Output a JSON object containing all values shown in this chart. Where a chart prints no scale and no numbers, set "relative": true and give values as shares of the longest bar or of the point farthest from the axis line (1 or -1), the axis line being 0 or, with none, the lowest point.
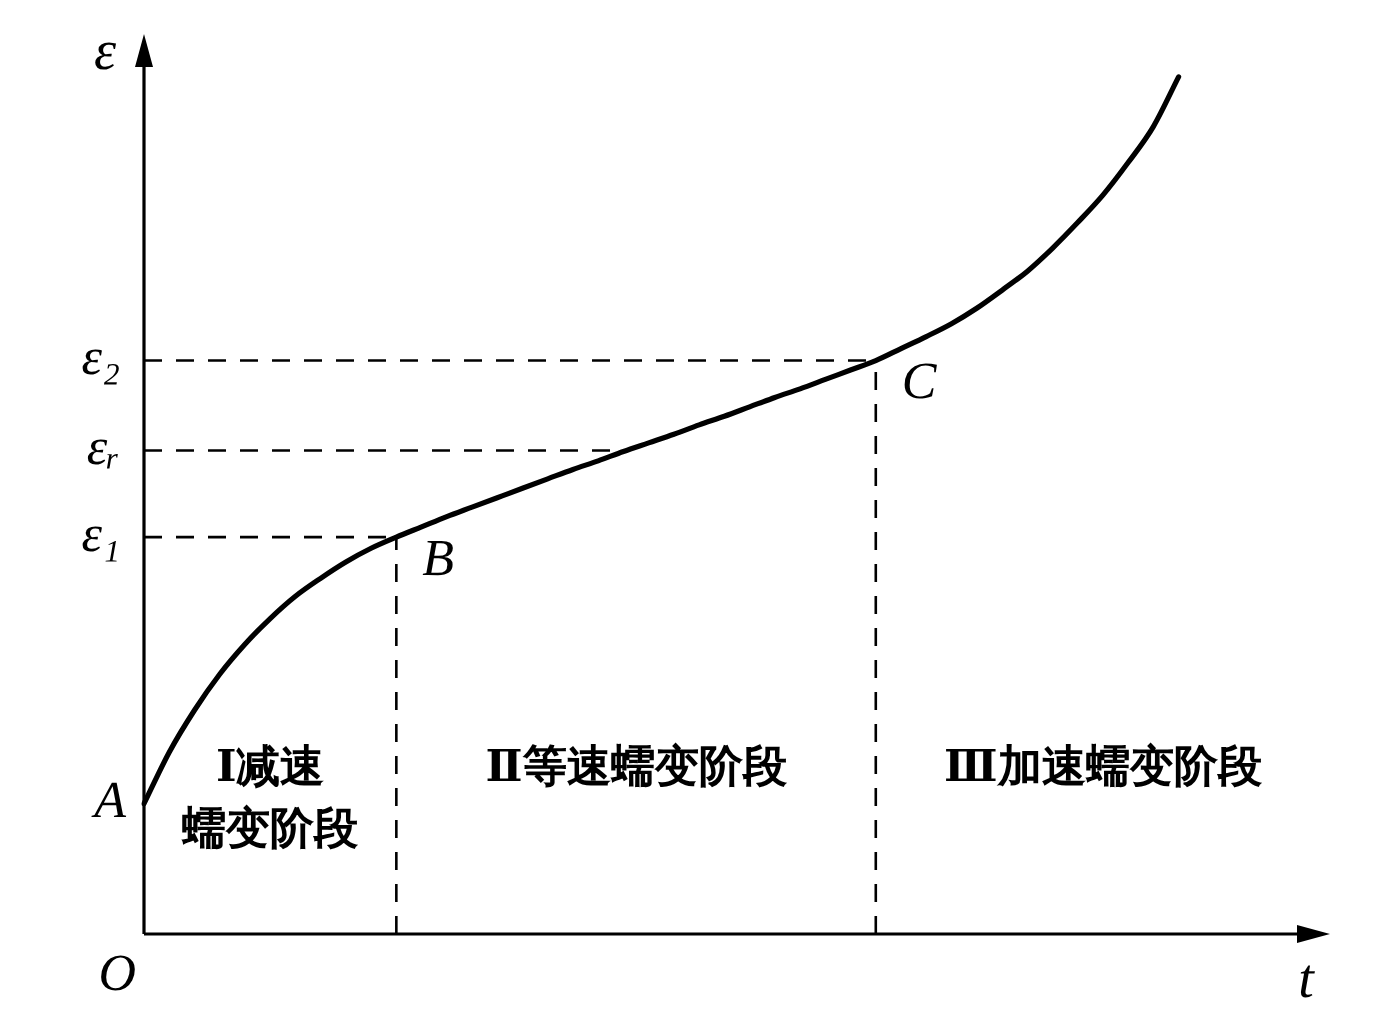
{
  "chart_data": {
    "type": "line",
    "relative": true,
    "xlabel": "t",
    "ylabel": "ε",
    "categories": [
      null,
      null,
      null,
      null,
      null,
      null,
      null,
      null,
      null,
      null,
      null,
      null,
      null,
      null,
      null,
      null,
      null,
      null,
      null,
      null,
      null,
      null,
      null,
      null,
      null,
      null,
      null,
      null,
      null,
      null,
      null,
      null,
      null,
      null,
      null,
      null,
      null,
      null,
      null,
      null,
      null,
      null,
      null,
      null,
      null,
      null,
      null,
      null
    ],
    "series": [
      {
        "color": "#000000",
        "values": [
          0.152,
          0.212,
          0.261,
          0.303,
          0.338,
          0.368,
          0.394,
          0.415,
          0.434,
          0.45,
          0.463,
          0.475,
          0.487,
          0.498,
          0.509,
          0.52,
          0.531,
          0.542,
          0.552,
          0.563,
          0.573,
          0.583,
          0.594,
          0.604,
          0.615,
          0.626,
          0.636,
          0.647,
          0.658,
          0.669,
          0.683,
          0.697,
          0.712,
          0.73,
          0.751,
          0.773,
          0.8,
          0.83,
          0.862,
          0.9,
          0.942,
          1,
          null,
          null,
          null,
          null,
          null,
          null
        ]
      }
    ],
    "ref_lines": [
      {
        "axis": "y",
        "value": 0.463,
        "label": "ε₁",
        "color": "#000000",
        "line_style": "dashed"
      },
      {
        "axis": "y",
        "value": 0.564,
        "label": "εᵣ",
        "color": "#000000",
        "line_style": "dashed"
      },
      {
        "axis": "y",
        "value": 0.669,
        "label": "ε₂",
        "color": "#000000",
        "line_style": "dashed"
      }
    ],
    "annotations": [
      "Ⅰ减速蠕变阶段",
      "Ⅱ等速蠕变阶段",
      "Ⅲ加速蠕变阶段",
      "A",
      "B",
      "C",
      "O"
    ]
  }
}
